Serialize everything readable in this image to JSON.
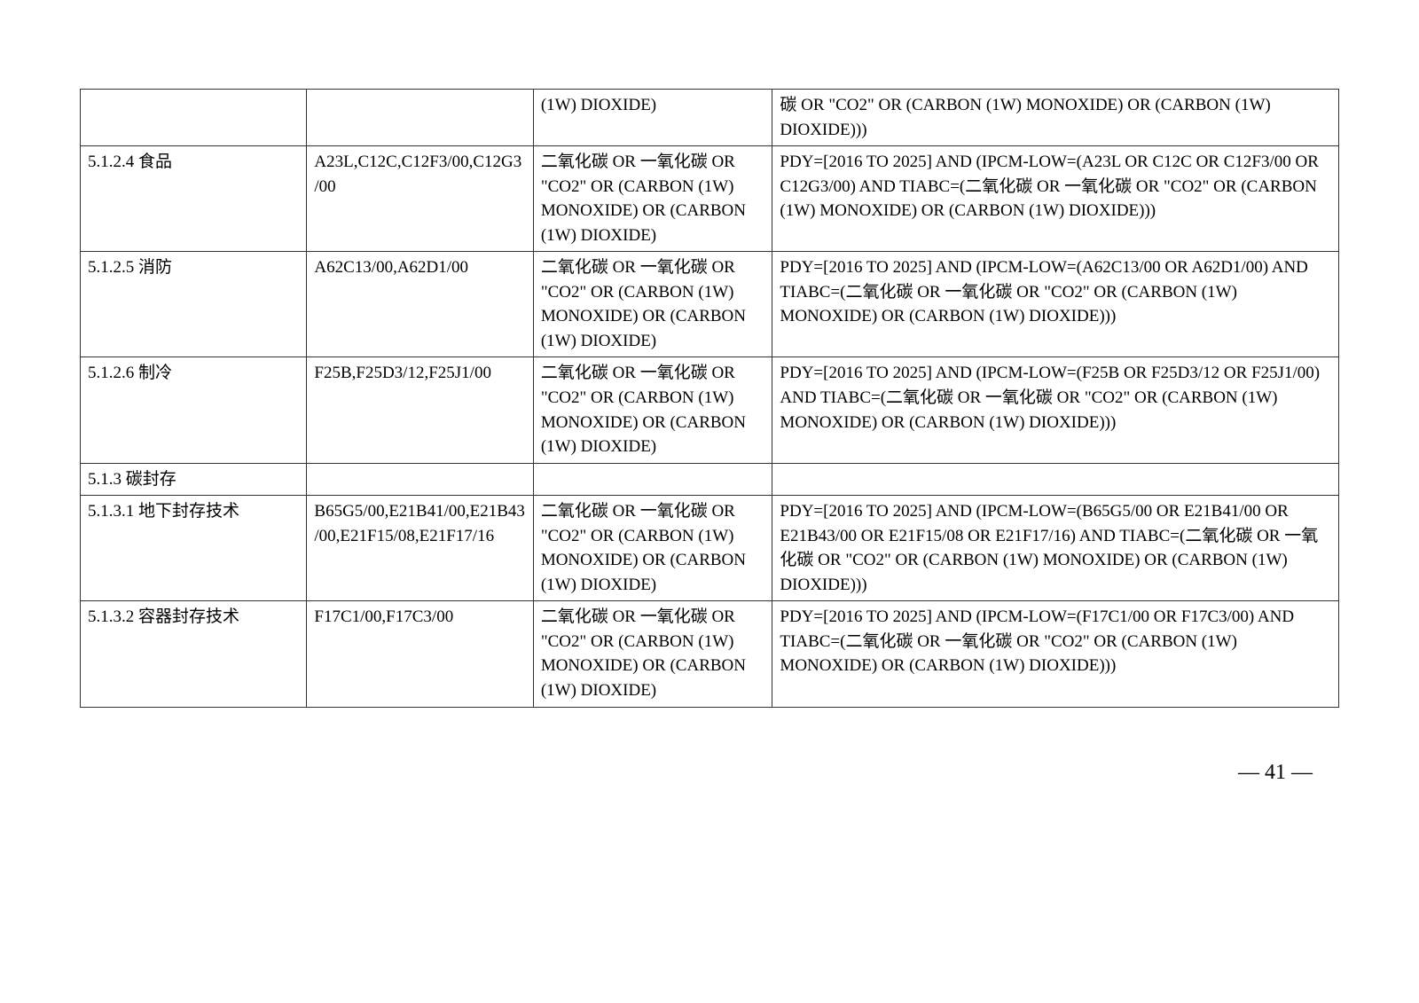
{
  "table": {
    "border_color": "#333333",
    "background_color": "#ffffff",
    "text_color": "#000000",
    "font_size_pt": 14,
    "column_widths_pct": [
      18,
      18,
      19,
      45
    ],
    "rows": [
      {
        "c1": "",
        "c2": "",
        "c3": "(1W) DIOXIDE)",
        "c4": "碳 OR \"CO2\" OR (CARBON (1W) MONOXIDE) OR (CARBON (1W) DIOXIDE)))",
        "continuation": true
      },
      {
        "c1": "5.1.2.4 食品",
        "c2": "A23L,C12C,C12F3/00,C12G3/00",
        "c3": "二氧化碳 OR 一氧化碳 OR \"CO2\" OR (CARBON (1W) MONOXIDE) OR (CARBON (1W) DIOXIDE)",
        "c4": "PDY=[2016 TO 2025] AND (IPCM-LOW=(A23L OR C12C OR C12F3/00 OR C12G3/00) AND  TIABC=(二氧化碳 OR 一氧化碳 OR \"CO2\" OR (CARBON (1W) MONOXIDE) OR (CARBON (1W) DIOXIDE)))"
      },
      {
        "c1": "5.1.2.5 消防",
        "c2": "A62C13/00,A62D1/00",
        "c3": "二氧化碳 OR 一氧化碳 OR \"CO2\" OR (CARBON (1W) MONOXIDE) OR (CARBON (1W) DIOXIDE)",
        "c4": "PDY=[2016 TO 2025] AND (IPCM-LOW=(A62C13/00 OR A62D1/00) AND  TIABC=(二氧化碳 OR 一氧化碳 OR \"CO2\" OR (CARBON (1W) MONOXIDE) OR (CARBON (1W) DIOXIDE)))"
      },
      {
        "c1": "5.1.2.6 制冷",
        "c2": "F25B,F25D3/12,F25J1/00",
        "c3": "二氧化碳 OR 一氧化碳 OR \"CO2\" OR (CARBON (1W) MONOXIDE) OR (CARBON (1W) DIOXIDE)",
        "c4": "PDY=[2016 TO 2025] AND (IPCM-LOW=(F25B OR F25D3/12 OR F25J1/00) AND  TIABC=(二氧化碳 OR 一氧化碳 OR \"CO2\" OR (CARBON (1W) MONOXIDE) OR (CARBON (1W) DIOXIDE)))"
      },
      {
        "c1": "5.1.3 碳封存",
        "c2": "",
        "c3": "",
        "c4": ""
      },
      {
        "c1": "5.1.3.1 地下封存技术",
        "c2": "B65G5/00,E21B41/00,E21B43/00,E21F15/08,E21F17/16",
        "c3": "二氧化碳 OR 一氧化碳 OR \"CO2\" OR (CARBON (1W) MONOXIDE) OR (CARBON (1W) DIOXIDE)",
        "c4": "PDY=[2016 TO 2025] AND (IPCM-LOW=(B65G5/00 OR E21B41/00 OR E21B43/00 OR E21F15/08 OR E21F17/16) AND  TIABC=(二氧化碳 OR 一氧化碳 OR \"CO2\" OR (CARBON (1W) MONOXIDE) OR (CARBON (1W) DIOXIDE)))"
      },
      {
        "c1": "5.1.3.2 容器封存技术",
        "c2": "F17C1/00,F17C3/00",
        "c3": "二氧化碳 OR 一氧化碳 OR \"CO2\" OR (CARBON (1W) MONOXIDE) OR (CARBON (1W) DIOXIDE)",
        "c4": "PDY=[2016 TO 2025] AND (IPCM-LOW=(F17C1/00 OR F17C3/00) AND  TIABC=(二氧化碳 OR 一氧化碳 OR \"CO2\" OR (CARBON (1W) MONOXIDE) OR (CARBON (1W) DIOXIDE)))"
      }
    ]
  },
  "page_number": "— 41 —"
}
